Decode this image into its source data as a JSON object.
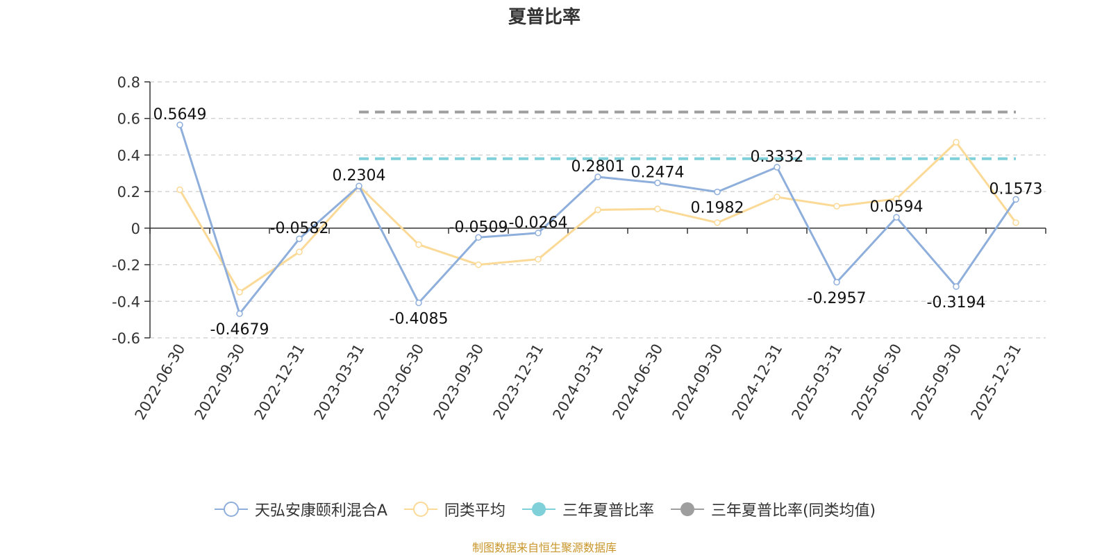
{
  "title": "夏普比率",
  "source_note": "制图数据来自恒生聚源数据库",
  "legend": [
    {
      "label": "天弘安康颐利混合A",
      "color": "#8eaedb",
      "symbol": "hollow-circle"
    },
    {
      "label": "同类平均",
      "color": "#fbd996",
      "symbol": "hollow-circle"
    },
    {
      "label": "三年夏普比率",
      "color": "#7fd0d8",
      "symbol": "filled-circle"
    },
    {
      "label": "三年夏普比率(同类均值)",
      "color": "#9e9e9e",
      "symbol": "filled-circle"
    }
  ],
  "chart_data": {
    "type": "line",
    "categories": [
      "2022-06-30",
      "2022-09-30",
      "2022-12-31",
      "2023-03-31",
      "2023-06-30",
      "2023-09-30",
      "2023-12-31",
      "2024-03-31",
      "2024-06-30",
      "2024-09-30",
      "2024-12-31",
      "2025-03-31",
      "2025-06-30",
      "2025-09-30",
      "2025-12-31"
    ],
    "ylim": [
      -0.6,
      0.8
    ],
    "yticks": [
      0.8,
      0.6,
      0.4,
      0.2,
      0,
      -0.2,
      -0.4,
      -0.6
    ],
    "ytick_labels": [
      "0.8",
      "0.6",
      "0.4",
      "0.2",
      "0",
      "-0.2",
      "-0.4",
      "-0.6"
    ],
    "grid": true,
    "legend_position": "bottom",
    "series": [
      {
        "name": "天弘安康颐利混合A",
        "color": "#8eaedb",
        "values": [
          0.5649,
          -0.4679,
          -0.0582,
          0.2304,
          -0.4085,
          -0.0509,
          -0.0264,
          0.2801,
          0.2474,
          0.1982,
          0.3332,
          -0.2957,
          0.0594,
          -0.3194,
          0.1573
        ],
        "labels": [
          "0.5649",
          "-0.4679",
          "-0.0582",
          "0.2304",
          "-0.4085",
          "-0.0509",
          "-0.0264",
          "0.2801",
          "0.2474",
          "0.1982",
          "0.3332",
          "-0.2957",
          "0.0594",
          "-0.3194",
          "0.1573"
        ]
      },
      {
        "name": "同类平均",
        "color": "#fbd996",
        "values": [
          0.21,
          -0.35,
          -0.13,
          0.23,
          -0.09,
          -0.2,
          -0.17,
          0.1,
          0.105,
          0.03,
          0.17,
          0.12,
          0.16,
          0.47,
          0.03
        ]
      }
    ],
    "reference_lines": [
      {
        "name": "三年夏普比率",
        "color": "#7fd0d8",
        "value": 0.38,
        "from_category": "2023-03-31",
        "to_category": "2025-12-31"
      },
      {
        "name": "三年夏普比率(同类均值)",
        "color": "#9e9e9e",
        "value": 0.635,
        "from_category": "2023-03-31",
        "to_category": "2025-12-31"
      }
    ]
  }
}
